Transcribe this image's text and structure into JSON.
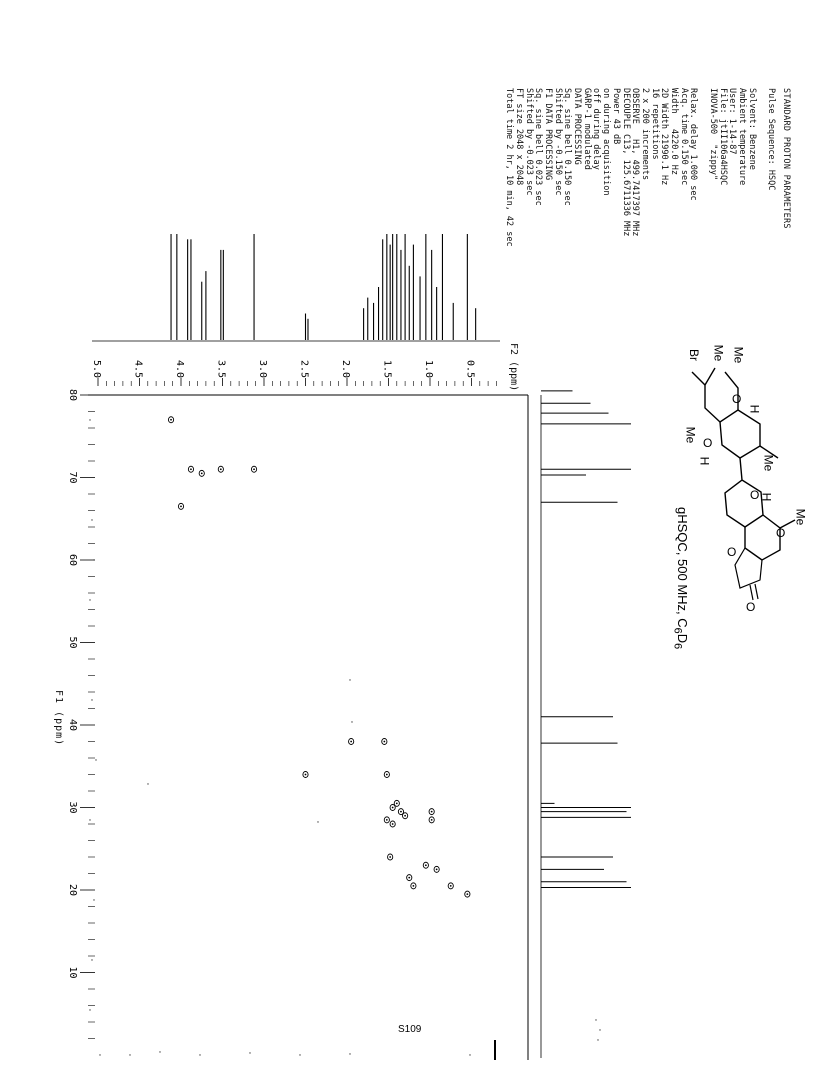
{
  "parameters": {
    "title": "STANDARD PROTON PARAMETERS",
    "lines": [
      "Pulse Sequence: HSQC",
      "",
      "Solvent: Benzene",
      "Ambient temperature",
      "User: 1-14-87",
      "File: jtII106a4HSQC",
      "INOVA-500  \"zippy\"",
      "",
      "Relax. delay 1.000 sec",
      "Acq. time 0.150 sec",
      "Width   4220.0 Hz",
      "2D Width 21990.1 Hz",
      "16 repetitions",
      "2 x 200 increments",
      "OBSERVE   H1, 499.7417397 MHz",
      "DECOUPLE C13, 125.6711336 MHz",
      "Power 43 dB",
      "on during acquisition",
      "off during delay",
      "GARP-1 modulated",
      "DATA PROCESSING",
      "Sq. sine bell 0.150 sec",
      "Shifted by -0.150 sec",
      "F1 DATA PROCESSING",
      "Sq. sine bell 0.023 sec",
      "Shifted by -0.023 sec",
      "FT size 2048 x 2048",
      "Total time 2 hr, 10 min, 42 sec"
    ]
  },
  "caption": "gHSQC, 500 MHz, C6D6",
  "page_number": "S109",
  "molecule": {
    "labels": [
      "Br",
      "Me",
      "Me",
      "O",
      "H",
      "Me",
      "O",
      "H",
      "Me",
      "O",
      "H",
      "Me",
      "O",
      "O",
      "O"
    ]
  },
  "f2_axis": {
    "label": "F2 (ppm)",
    "ticks": [
      "5.0",
      "4.5",
      "4.0",
      "3.5",
      "3.0",
      "2.5",
      "2.0",
      "1.5",
      "1.0",
      "0.5"
    ]
  },
  "f1_axis": {
    "label": "F1 (ppm)",
    "ticks": [
      "80",
      "70",
      "60",
      "50",
      "40",
      "30",
      "20",
      "10"
    ]
  },
  "chart_data": {
    "type": "scatter",
    "title": "gHSQC, 500 MHz, C6D6",
    "xlabel": "F2 (ppm)",
    "ylabel": "F1 (ppm)",
    "xlim": [
      5.2,
      0.1
    ],
    "ylim": [
      80,
      5
    ],
    "proton_projection": [
      {
        "ppm": 4.12,
        "h": 1.0
      },
      {
        "ppm": 4.05,
        "h": 1.0
      },
      {
        "ppm": 3.92,
        "h": 0.95
      },
      {
        "ppm": 3.88,
        "h": 0.95
      },
      {
        "ppm": 3.75,
        "h": 0.55
      },
      {
        "ppm": 3.7,
        "h": 0.65
      },
      {
        "ppm": 3.52,
        "h": 0.85
      },
      {
        "ppm": 3.49,
        "h": 0.85
      },
      {
        "ppm": 3.12,
        "h": 1.0
      },
      {
        "ppm": 2.5,
        "h": 0.25
      },
      {
        "ppm": 2.47,
        "h": 0.2
      },
      {
        "ppm": 1.8,
        "h": 0.3
      },
      {
        "ppm": 1.75,
        "h": 0.4
      },
      {
        "ppm": 1.68,
        "h": 0.35
      },
      {
        "ppm": 1.62,
        "h": 0.5
      },
      {
        "ppm": 1.57,
        "h": 0.95
      },
      {
        "ppm": 1.52,
        "h": 1.0
      },
      {
        "ppm": 1.48,
        "h": 0.9
      },
      {
        "ppm": 1.45,
        "h": 1.0
      },
      {
        "ppm": 1.4,
        "h": 1.0
      },
      {
        "ppm": 1.35,
        "h": 0.85
      },
      {
        "ppm": 1.3,
        "h": 1.0
      },
      {
        "ppm": 1.25,
        "h": 0.7
      },
      {
        "ppm": 1.2,
        "h": 0.9
      },
      {
        "ppm": 1.12,
        "h": 0.6
      },
      {
        "ppm": 1.05,
        "h": 1.0
      },
      {
        "ppm": 0.98,
        "h": 0.85
      },
      {
        "ppm": 0.92,
        "h": 0.5
      },
      {
        "ppm": 0.85,
        "h": 1.0
      },
      {
        "ppm": 0.72,
        "h": 0.35
      },
      {
        "ppm": 0.55,
        "h": 1.0
      },
      {
        "ppm": 0.45,
        "h": 0.3
      }
    ],
    "carbon_projection": [
      {
        "ppm": 80.5,
        "h": 0.35
      },
      {
        "ppm": 79.0,
        "h": 0.55
      },
      {
        "ppm": 77.8,
        "h": 0.75
      },
      {
        "ppm": 76.5,
        "h": 1.0
      },
      {
        "ppm": 71.0,
        "h": 1.0
      },
      {
        "ppm": 70.3,
        "h": 0.5
      },
      {
        "ppm": 67.0,
        "h": 0.85
      },
      {
        "ppm": 41.0,
        "h": 0.8
      },
      {
        "ppm": 37.8,
        "h": 0.85
      },
      {
        "ppm": 30.5,
        "h": 0.15
      },
      {
        "ppm": 30.0,
        "h": 1.0
      },
      {
        "ppm": 29.5,
        "h": 0.95
      },
      {
        "ppm": 28.8,
        "h": 1.0
      },
      {
        "ppm": 24.0,
        "h": 0.8
      },
      {
        "ppm": 22.5,
        "h": 0.7
      },
      {
        "ppm": 21.0,
        "h": 0.95
      },
      {
        "ppm": 20.3,
        "h": 1.0
      }
    ],
    "cross_peaks": [
      {
        "h": 4.12,
        "c": 77.0
      },
      {
        "h": 3.88,
        "c": 71.0
      },
      {
        "h": 3.75,
        "c": 70.5
      },
      {
        "h": 3.52,
        "c": 71.0
      },
      {
        "h": 3.12,
        "c": 71.0
      },
      {
        "h": 4.0,
        "c": 66.5
      },
      {
        "h": 1.95,
        "c": 38.0
      },
      {
        "h": 1.55,
        "c": 38.0
      },
      {
        "h": 1.52,
        "c": 34.0
      },
      {
        "h": 2.5,
        "c": 34.0
      },
      {
        "h": 1.45,
        "c": 30.0
      },
      {
        "h": 1.4,
        "c": 30.5
      },
      {
        "h": 1.35,
        "c": 29.5
      },
      {
        "h": 1.3,
        "c": 29.0
      },
      {
        "h": 1.52,
        "c": 28.5
      },
      {
        "h": 1.45,
        "c": 28.0
      },
      {
        "h": 0.98,
        "c": 29.5
      },
      {
        "h": 0.98,
        "c": 28.5
      },
      {
        "h": 1.48,
        "c": 24.0
      },
      {
        "h": 1.05,
        "c": 23.0
      },
      {
        "h": 0.92,
        "c": 22.5
      },
      {
        "h": 1.25,
        "c": 21.5
      },
      {
        "h": 1.2,
        "c": 20.5
      },
      {
        "h": 0.75,
        "c": 20.5
      },
      {
        "h": 0.55,
        "c": 19.5
      }
    ]
  }
}
